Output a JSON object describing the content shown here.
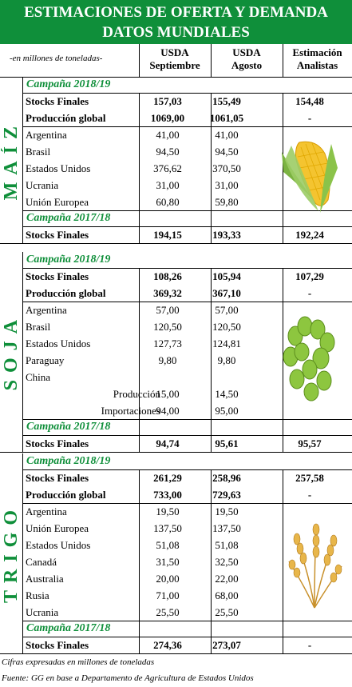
{
  "title": {
    "line1": "ESTIMACIONES DE OFERTA Y DEMANDA",
    "line2": "DATOS MUNDIALES"
  },
  "header": {
    "unit_note": "-en millones de toneladas-",
    "col1": [
      "USDA",
      "Septiembre"
    ],
    "col2": [
      "USDA",
      "Agosto"
    ],
    "col3": [
      "Estimación",
      "Analistas"
    ]
  },
  "sections": [
    {
      "crop": "MAÍZ",
      "campaign_current": "Campaña 2018/19",
      "rows": [
        {
          "label": "Stocks Finales",
          "sep": "157,03",
          "ago": "155,49",
          "ana": "154,48",
          "bold": true
        },
        {
          "label": "Producción global",
          "sep": "1069,00",
          "ago": "1061,05",
          "ana": "-",
          "bold": true
        },
        {
          "label": "Argentina",
          "sep": "41,00",
          "ago": "41,00",
          "ana": ""
        },
        {
          "label": "Brasil",
          "sep": "94,50",
          "ago": "94,50",
          "ana": ""
        },
        {
          "label": "Estados Unidos",
          "sep": "376,62",
          "ago": "370,50",
          "ana": ""
        },
        {
          "label": "Ucrania",
          "sep": "31,00",
          "ago": "31,00",
          "ana": ""
        },
        {
          "label": "Unión Europea",
          "sep": "60,80",
          "ago": "59,80",
          "ana": ""
        }
      ],
      "campaign_previous": "Campaña 2017/18",
      "prev_row": {
        "label": "Stocks Finales",
        "sep": "194,15",
        "ago": "193,33",
        "ana": "192,24"
      }
    },
    {
      "crop": "SOJA",
      "campaign_current": "Campaña 2018/19",
      "rows": [
        {
          "label": "Stocks Finales",
          "sep": "108,26",
          "ago": "105,94",
          "ana": "107,29",
          "bold": true
        },
        {
          "label": "Producción global",
          "sep": "369,32",
          "ago": "367,10",
          "ana": "-",
          "bold": true
        },
        {
          "label": "Argentina",
          "sep": "57,00",
          "ago": "57,00",
          "ana": ""
        },
        {
          "label": "Brasil",
          "sep": "120,50",
          "ago": "120,50",
          "ana": ""
        },
        {
          "label": "Estados Unidos",
          "sep": "127,73",
          "ago": "124,81",
          "ana": ""
        },
        {
          "label": "Paraguay",
          "sep": "9,80",
          "ago": "9,80",
          "ana": ""
        },
        {
          "label": "China",
          "sep": "",
          "ago": "",
          "ana": ""
        },
        {
          "label": "Producción",
          "sep": "15,00",
          "ago": "14,50",
          "ana": "",
          "sub": true
        },
        {
          "label": "Importaciones",
          "sep": "94,00",
          "ago": "95,00",
          "ana": "",
          "sub": true
        }
      ],
      "campaign_previous": "Campaña 2017/18",
      "prev_row": {
        "label": "Stocks Finales",
        "sep": "94,74",
        "ago": "95,61",
        "ana": "95,57"
      }
    },
    {
      "crop": "TRIGO",
      "campaign_current": "Campaña 2018/19",
      "rows": [
        {
          "label": "Stocks Finales",
          "sep": "261,29",
          "ago": "258,96",
          "ana": "257,58",
          "bold": true
        },
        {
          "label": "Producción global",
          "sep": "733,00",
          "ago": "729,63",
          "ana": "-",
          "bold": true
        },
        {
          "label": "Argentina",
          "sep": "19,50",
          "ago": "19,50",
          "ana": ""
        },
        {
          "label": "Unión Europea",
          "sep": "137,50",
          "ago": "137,50",
          "ana": ""
        },
        {
          "label": "Estados Unidos",
          "sep": "51,08",
          "ago": "51,08",
          "ana": ""
        },
        {
          "label": "Canadá",
          "sep": "31,50",
          "ago": "32,50",
          "ana": ""
        },
        {
          "label": "Australia",
          "sep": "20,00",
          "ago": "22,00",
          "ana": ""
        },
        {
          "label": "Rusia",
          "sep": "71,00",
          "ago": "68,00",
          "ana": ""
        },
        {
          "label": "Ucrania",
          "sep": "25,50",
          "ago": "25,50",
          "ana": ""
        }
      ],
      "campaign_previous": "Campaña 2017/18",
      "prev_row": {
        "label": "Stocks Finales",
        "sep": "274,36",
        "ago": "273,07",
        "ana": "-"
      }
    }
  ],
  "footer": {
    "note": "Cifras expresadas en millones de toneladas",
    "source": "Fuente: GG en base a Departamento de Agricultura de Estados Unidos"
  },
  "colors": {
    "accent": "#0f8f3a",
    "title_bg": "#0f8f3a"
  },
  "illustrations": [
    "corn-cob-icon",
    "soybean-pods-icon",
    "wheat-ears-icon"
  ]
}
